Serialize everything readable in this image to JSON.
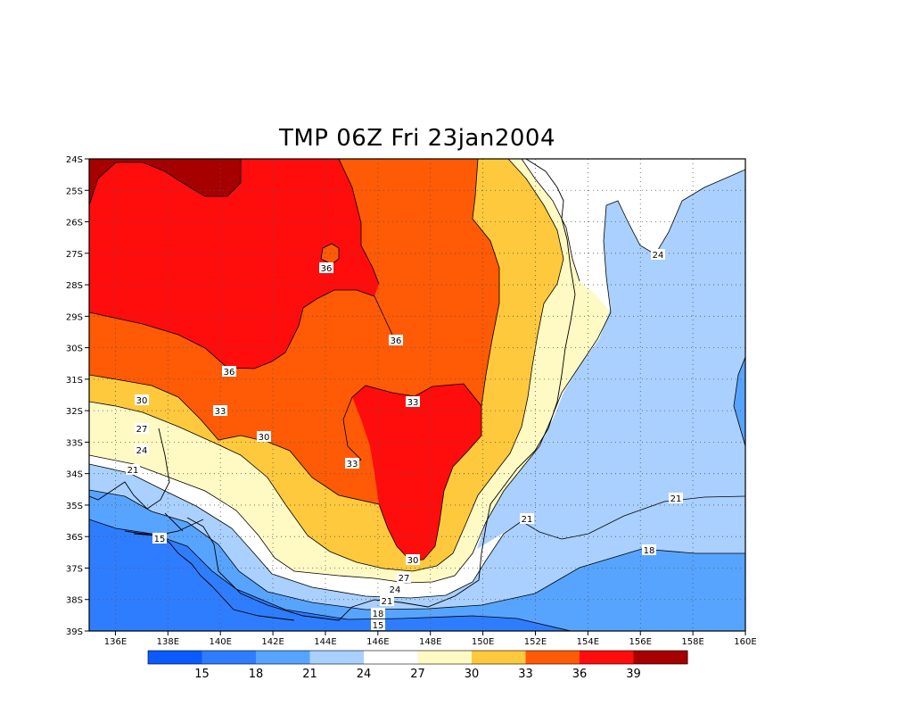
{
  "chart_data": {
    "type": "map",
    "title": "TMP 06Z Fri 23jan2004",
    "variable": "TMP",
    "time": "06Z Fri 23jan2004",
    "lon_range": [
      135,
      160
    ],
    "lat_range": [
      -39,
      -24
    ],
    "lon_ticks": [
      "136E",
      "138E",
      "140E",
      "142E",
      "144E",
      "146E",
      "148E",
      "150E",
      "152E",
      "154E",
      "156E",
      "158E",
      "160E"
    ],
    "lat_ticks": [
      "24S",
      "25S",
      "26S",
      "27S",
      "28S",
      "29S",
      "30S",
      "31S",
      "32S",
      "33S",
      "34S",
      "35S",
      "36S",
      "37S",
      "38S",
      "39S"
    ],
    "grid": true,
    "contour_levels": [
      15,
      18,
      21,
      24,
      27,
      30,
      33,
      36,
      39
    ],
    "contour_labels": [
      "36",
      "36",
      "36",
      "33",
      "33",
      "33",
      "30",
      "30",
      "30",
      "27",
      "27",
      "24",
      "24",
      "24",
      "21",
      "21",
      "21",
      "21",
      "18",
      "18",
      "15",
      "15"
    ],
    "colorbar": {
      "labels": [
        "15",
        "18",
        "21",
        "24",
        "27",
        "30",
        "33",
        "36",
        "39"
      ],
      "colors": [
        "#0a5aff",
        "#2f7dff",
        "#56a4ff",
        "#a9d0ff",
        "#ffffff",
        "#fffac3",
        "#fec93d",
        "#ff5a05",
        "#ff0d0d",
        "#a60000"
      ]
    }
  }
}
